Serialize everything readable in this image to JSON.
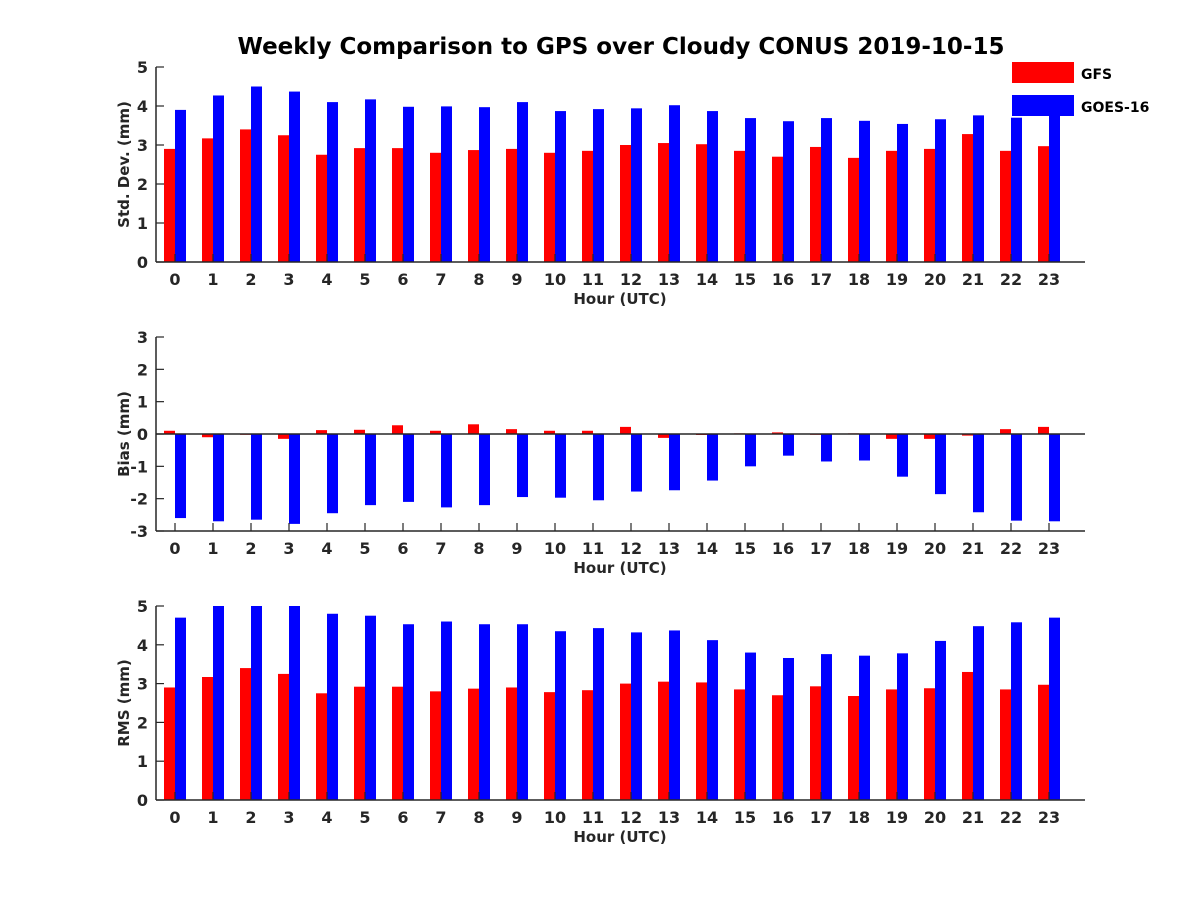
{
  "figure": {
    "title": "Weekly Comparison to GPS over Cloudy CONUS 2019-10-15"
  },
  "legend": [
    {
      "name": "GFS",
      "color": "#ff0000"
    },
    {
      "name": "GOES-16",
      "color": "#0000ff"
    }
  ],
  "chart_data": [
    {
      "type": "bar",
      "xlabel": "Hour (UTC)",
      "ylabel": "Std. Dev. (mm)",
      "ylim": [
        0,
        5
      ],
      "yticks": [
        0,
        1,
        2,
        3,
        4,
        5
      ],
      "categories": [
        "0",
        "1",
        "2",
        "3",
        "4",
        "5",
        "6",
        "7",
        "8",
        "9",
        "10",
        "11",
        "12",
        "13",
        "14",
        "15",
        "16",
        "17",
        "18",
        "19",
        "20",
        "21",
        "22",
        "23"
      ],
      "series": [
        {
          "name": "GFS",
          "color": "#ff0000",
          "values": [
            2.9,
            3.17,
            3.4,
            3.25,
            2.75,
            2.92,
            2.92,
            2.8,
            2.87,
            2.9,
            2.8,
            2.85,
            3.0,
            3.05,
            3.02,
            2.85,
            2.7,
            2.95,
            2.67,
            2.85,
            2.9,
            3.28,
            2.85,
            2.97
          ]
        },
        {
          "name": "GOES-16",
          "color": "#0000ff",
          "values": [
            3.9,
            4.27,
            4.5,
            4.37,
            4.1,
            4.17,
            3.98,
            3.99,
            3.97,
            4.1,
            3.87,
            3.92,
            3.94,
            4.02,
            3.87,
            3.69,
            3.61,
            3.69,
            3.62,
            3.54,
            3.66,
            3.76,
            3.7,
            3.8
          ]
        }
      ]
    },
    {
      "type": "bar",
      "xlabel": "Hour (UTC)",
      "ylabel": "Bias (mm)",
      "ylim": [
        -3,
        3
      ],
      "yticks": [
        -3,
        -2,
        -1,
        0,
        1,
        2,
        3
      ],
      "categories": [
        "0",
        "1",
        "2",
        "3",
        "4",
        "5",
        "6",
        "7",
        "8",
        "9",
        "10",
        "11",
        "12",
        "13",
        "14",
        "15",
        "16",
        "17",
        "18",
        "19",
        "20",
        "21",
        "22",
        "23"
      ],
      "series": [
        {
          "name": "GFS",
          "color": "#ff0000",
          "values": [
            0.1,
            -0.1,
            -0.02,
            -0.15,
            0.12,
            0.13,
            0.27,
            0.1,
            0.3,
            0.15,
            0.1,
            0.1,
            0.22,
            -0.12,
            -0.03,
            0.02,
            0.05,
            -0.02,
            0.02,
            -0.15,
            -0.15,
            -0.05,
            0.15,
            0.22
          ]
        },
        {
          "name": "GOES-16",
          "color": "#0000ff",
          "values": [
            -2.6,
            -2.7,
            -2.65,
            -2.78,
            -2.45,
            -2.2,
            -2.1,
            -2.27,
            -2.2,
            -1.95,
            -1.97,
            -2.05,
            -1.78,
            -1.74,
            -1.44,
            -1.0,
            -0.67,
            -0.85,
            -0.82,
            -1.32,
            -1.86,
            -2.42,
            -2.68,
            -2.7
          ]
        }
      ]
    },
    {
      "type": "bar",
      "xlabel": "Hour (UTC)",
      "ylabel": "RMS (mm)",
      "ylim": [
        0,
        5
      ],
      "yticks": [
        0,
        1,
        2,
        3,
        4,
        5
      ],
      "categories": [
        "0",
        "1",
        "2",
        "3",
        "4",
        "5",
        "6",
        "7",
        "8",
        "9",
        "10",
        "11",
        "12",
        "13",
        "14",
        "15",
        "16",
        "17",
        "18",
        "19",
        "20",
        "21",
        "22",
        "23"
      ],
      "series": [
        {
          "name": "GFS",
          "color": "#ff0000",
          "values": [
            2.9,
            3.17,
            3.4,
            3.25,
            2.75,
            2.92,
            2.92,
            2.8,
            2.87,
            2.9,
            2.78,
            2.83,
            3.0,
            3.05,
            3.03,
            2.85,
            2.7,
            2.93,
            2.68,
            2.85,
            2.88,
            3.3,
            2.85,
            2.97
          ]
        },
        {
          "name": "GOES-16",
          "color": "#0000ff",
          "values": [
            4.7,
            5.0,
            5.0,
            5.0,
            4.8,
            4.75,
            4.53,
            4.6,
            4.53,
            4.53,
            4.35,
            4.43,
            4.32,
            4.37,
            4.12,
            3.8,
            3.66,
            3.76,
            3.72,
            3.78,
            4.1,
            4.48,
            4.58,
            4.7
          ]
        }
      ]
    }
  ]
}
